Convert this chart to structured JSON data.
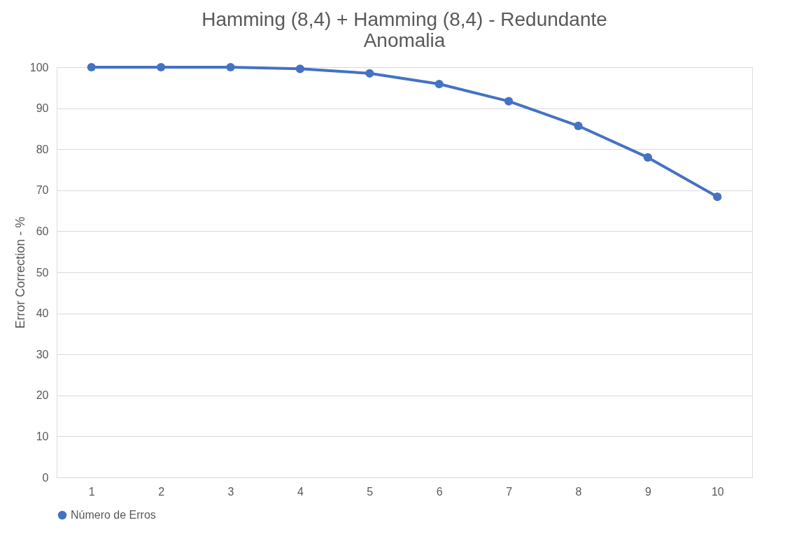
{
  "chart_data": {
    "type": "line",
    "title": "Hamming (8,4) + Hamming (8,4) - Redundante\nAnomalia",
    "ylabel": "Error Correction - %",
    "categories": [
      "1",
      "2",
      "3",
      "4",
      "5",
      "6",
      "7",
      "8",
      "9",
      "10"
    ],
    "series": [
      {
        "name": "Número de Erros",
        "color": "#4472c4",
        "values": [
          100,
          100,
          100,
          99.6,
          98.5,
          95.9,
          91.7,
          85.7,
          78.0,
          68.4
        ]
      }
    ],
    "ylim": [
      0,
      100
    ],
    "yticks": [
      0,
      10,
      20,
      30,
      40,
      50,
      60,
      70,
      80,
      90,
      100
    ],
    "grid": "y",
    "legend": "bottom",
    "marker": "circle",
    "line_style": "solid"
  }
}
